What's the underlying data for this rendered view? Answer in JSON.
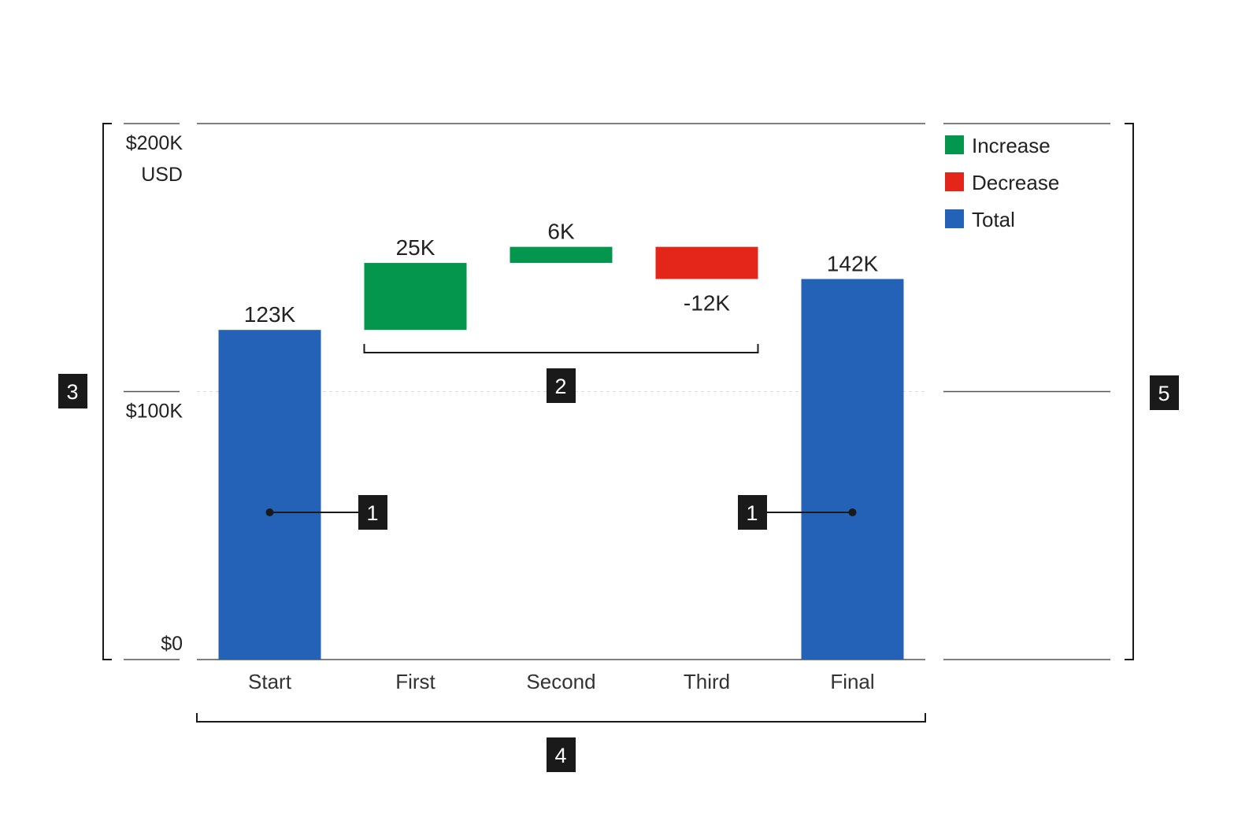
{
  "chart_data": {
    "type": "bar",
    "subtype": "waterfall",
    "categories": [
      "Start",
      "First",
      "Second",
      "Third",
      "Final"
    ],
    "values": [
      123,
      25,
      6,
      -12,
      142
    ],
    "kinds": [
      "total",
      "increase",
      "increase",
      "decrease",
      "total"
    ],
    "value_labels": [
      "123K",
      "25K",
      "6K",
      "-12K",
      "142K"
    ],
    "ylim": [
      0,
      200
    ],
    "yticks": [
      {
        "value": 200,
        "label": "$200K"
      },
      {
        "value": 100,
        "label": "$100K"
      },
      {
        "value": 0,
        "label": "$0"
      }
    ],
    "yunit": "USD",
    "legend": {
      "placement": "top-right",
      "items": [
        {
          "label": "Increase",
          "kind": "increase"
        },
        {
          "label": "Decrease",
          "kind": "decrease"
        },
        {
          "label": "Total",
          "kind": "total"
        }
      ]
    },
    "colors": {
      "increase": "#03964c",
      "decrease": "#e32619",
      "total": "#2462b8"
    },
    "annotations": [
      "1",
      "2",
      "3",
      "4",
      "5"
    ]
  }
}
